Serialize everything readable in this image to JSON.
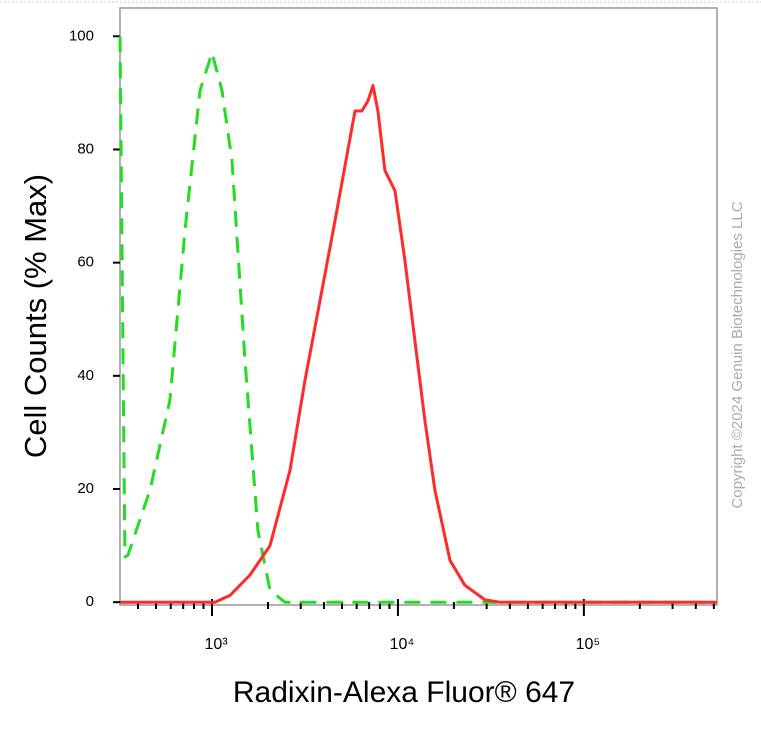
{
  "chart_data": {
    "type": "line",
    "x_label": "Radixin-Alexa Fluor® 647",
    "y_label": "Cell Counts (% Max)",
    "annotation": "Copyright ©2024 Genuin Biotechnologies LLC",
    "x_scale": "log",
    "xlim": [
      320,
      520000
    ],
    "ylim": [
      -0.5,
      105
    ],
    "xticks": [
      {
        "value": 1000,
        "label": "10³"
      },
      {
        "value": 10000,
        "label": "10⁴"
      },
      {
        "value": 100000,
        "label": "10⁵"
      }
    ],
    "x_minor_ticks": [
      400,
      500,
      600,
      700,
      800,
      900,
      2000,
      3000,
      4000,
      5000,
      6000,
      7000,
      8000,
      9000,
      20000,
      30000,
      40000,
      50000,
      60000,
      70000,
      80000,
      90000,
      200000,
      300000,
      400000,
      500000
    ],
    "yticks": [
      0,
      20,
      40,
      60,
      80,
      100
    ],
    "series": [
      {
        "color": "#22dd22",
        "dashed": true,
        "x": [
          320,
          340,
          353,
          464,
          594,
          716,
          862,
          1000,
          1132,
          1281,
          1504,
          1766,
          2051,
          2467,
          520000
        ],
        "values": [
          100,
          8,
          8.3,
          19.8,
          35.7,
          65.7,
          90.4,
          97.1,
          90.4,
          78,
          42.7,
          12.7,
          2.1,
          0,
          0
        ]
      },
      {
        "color": "#ff2a2a",
        "dashed": false,
        "x": [
          320,
          1038,
          1250,
          1600,
          2051,
          2626,
          3162,
          3809,
          4584,
          5190,
          5873,
          6400,
          6900,
          7340,
          7800,
          8510,
          9640,
          10900,
          12340,
          13960,
          15800,
          19050,
          22900,
          29400,
          35340,
          520000
        ],
        "values": [
          0,
          0,
          1.2,
          4.8,
          10,
          23.3,
          39.2,
          53.3,
          67.4,
          77.1,
          86.8,
          86.8,
          88.6,
          91.3,
          86.8,
          76.3,
          72.7,
          60.4,
          46.2,
          32.1,
          19.8,
          7.4,
          3,
          0.4,
          0,
          0
        ]
      }
    ]
  }
}
